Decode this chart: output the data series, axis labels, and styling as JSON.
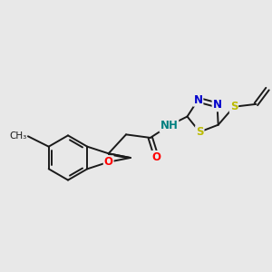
{
  "bg": "#e8e8e8",
  "bond_color": "#1a1a1a",
  "lw": 1.4,
  "atom_colors": {
    "O": "#ff0000",
    "N": "#0000cc",
    "S": "#bbbb00",
    "H": "#008080",
    "C": "#1a1a1a"
  },
  "fs": 8.5,
  "xlim": [
    0,
    10
  ],
  "ylim": [
    0,
    10
  ]
}
